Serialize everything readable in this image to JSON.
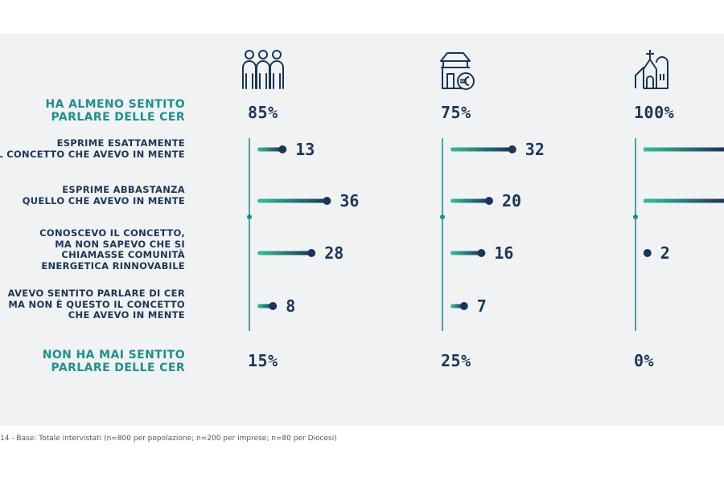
{
  "chart_data": {
    "type": "bar",
    "groups": [
      "popolazione",
      "imprese",
      "Diocesi"
    ],
    "heard": {
      "label_lines": [
        "HA ALMENO SENTITO",
        "PARLARE DELLE CER"
      ],
      "values": [
        "85%",
        "75%",
        "100%"
      ]
    },
    "never_heard": {
      "label_lines": [
        "NON HA MAI SENTITO",
        "PARLARE DELLE CER"
      ],
      "values": [
        "15%",
        "25%",
        "0%"
      ]
    },
    "categories": [
      {
        "label_lines": [
          "ESPRIME ESATTAMENTE",
          "IL CONCETTO CHE AVEVO IN MENTE"
        ]
      },
      {
        "label_lines": [
          "ESPRIME ABBASTANZA",
          "QUELLO CHE AVEVO IN MENTE"
        ]
      },
      {
        "label_lines": [
          "CONOSCEVO IL CONCETTO,",
          "MA NON SAPEVO CHE SI",
          "CHIAMASSE COMUNITÀ",
          "ENERGETICA RINNOVABILE"
        ]
      },
      {
        "label_lines": [
          "AVEVO SENTITO PARLARE DI CER",
          "MA NON È QUESTO IL CONCETTO",
          "CHE AVEVO IN MENTE"
        ]
      }
    ],
    "series": [
      {
        "values": [
          13,
          36,
          28,
          8
        ],
        "labels": [
          "13",
          "36",
          "28",
          "8"
        ]
      },
      {
        "values": [
          32,
          20,
          16,
          7
        ],
        "labels": [
          "32",
          "20",
          "16",
          "7"
        ]
      },
      {
        "values": [
          null,
          null,
          2,
          null
        ],
        "labels": [
          "",
          "",
          "2",
          ""
        ]
      }
    ],
    "footnote": "14 - Base: Totale intervistati (n=800 per popolazione; n=200 per imprese; n=80 per Diocesi)"
  },
  "colors": {
    "teal": "#2db894",
    "navy": "#1c3558",
    "accent": "#1f8f8e"
  },
  "icons": [
    "people-icon",
    "business-building-euro-icon",
    "church-icon"
  ]
}
